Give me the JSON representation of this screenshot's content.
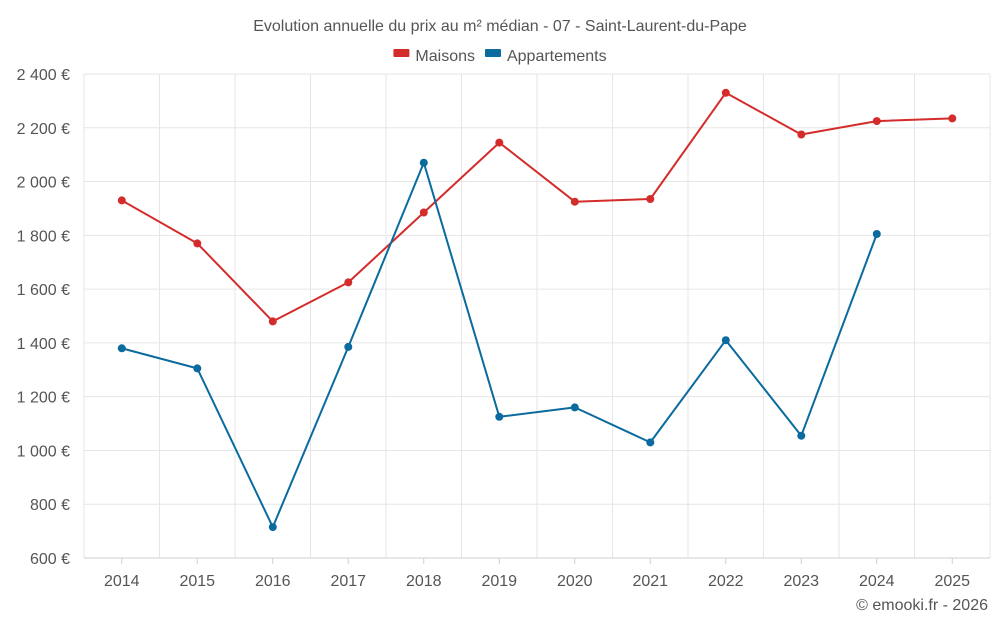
{
  "chart_data": {
    "type": "line",
    "title": "Evolution annuelle du prix au m² médian - 07 - Saint-Laurent-du-Pape",
    "categories": [
      "2014",
      "2015",
      "2016",
      "2017",
      "2018",
      "2019",
      "2020",
      "2021",
      "2022",
      "2023",
      "2024",
      "2025"
    ],
    "series": [
      {
        "name": "Maisons",
        "color": "#d42b2b",
        "values": [
          1930,
          1770,
          1480,
          1625,
          1885,
          2145,
          1925,
          1935,
          2330,
          2175,
          2225,
          2235
        ]
      },
      {
        "name": "Appartements",
        "color": "#0b6a9e",
        "values": [
          1380,
          1305,
          715,
          1385,
          2070,
          1125,
          1160,
          1030,
          1410,
          1055,
          1805,
          null
        ]
      }
    ],
    "ylim": [
      600,
      2400
    ],
    "yticks": [
      600,
      800,
      1000,
      1200,
      1400,
      1600,
      1800,
      2000,
      2200,
      2400
    ],
    "ytick_labels": [
      "600 €",
      "800 €",
      "1 000 €",
      "1 200 €",
      "1 400 €",
      "1 600 €",
      "1 800 €",
      "2 000 €",
      "2 200 €",
      "2 400 €"
    ],
    "xlabel": "",
    "ylabel": "",
    "legend_position": "top-center",
    "grid": true
  },
  "credit": "© emooki.fr - 2026"
}
